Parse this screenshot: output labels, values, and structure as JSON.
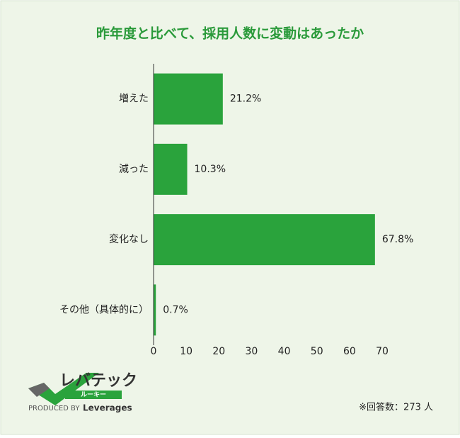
{
  "chart_data": {
    "type": "barh",
    "title": "昨年度と比べて、採用人数に変動はあったか",
    "categories": [
      "増えた",
      "減った",
      "変化なし",
      "その他（具体的に）"
    ],
    "values": [
      21.2,
      10.3,
      67.8,
      0.7
    ],
    "value_labels": [
      "21.2%",
      "10.3%",
      "67.8%",
      "0.7%"
    ],
    "color": "#2aa33c",
    "xlim": [
      0,
      70
    ],
    "xticks": [
      0,
      10,
      20,
      30,
      40,
      50,
      60,
      70
    ],
    "grid": false
  },
  "note": "※回答数：273 人",
  "logo": {
    "name": "レバテック",
    "sub": "ルーキー",
    "produced": "PRODUCED BY",
    "brand": "Leverages"
  }
}
